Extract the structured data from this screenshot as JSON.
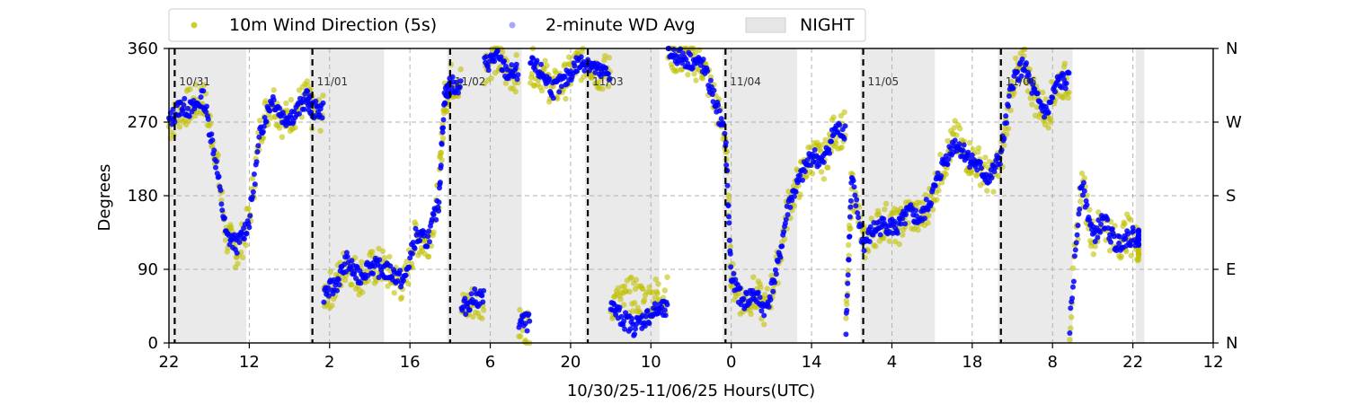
{
  "chart_data": {
    "type": "scatter",
    "title": "",
    "xlabel": "10/30/25-11/06/25  Hours(UTC)",
    "ylabel": "Degrees",
    "ylim": [
      0,
      360
    ],
    "yticks": [
      0,
      90,
      180,
      270,
      360
    ],
    "y2ticks": [
      "N",
      "E",
      "S",
      "W",
      "N"
    ],
    "x_start": "2025-10-30T22:00Z",
    "xlim_hours": [
      0,
      182
    ],
    "xtick_labels": [
      "22",
      "12",
      "2",
      "16",
      "6",
      "20",
      "10",
      "0",
      "14",
      "4",
      "18",
      "8",
      "22",
      "12"
    ],
    "grid": true,
    "legend_position": "top",
    "legend": [
      {
        "label": "10m Wind Direction (5s)",
        "color": "#bfbf00",
        "kind": "marker"
      },
      {
        "label": "2-minute WD Avg",
        "color": "#0000ff",
        "kind": "marker"
      },
      {
        "label": "NIGHT",
        "color": "#e6e6e6",
        "kind": "patch"
      }
    ],
    "day_boundaries": [
      {
        "hour": 1,
        "label": "10/31"
      },
      {
        "hour": 25,
        "label": "11/01"
      },
      {
        "hour": 49,
        "label": "11/02"
      },
      {
        "hour": 73,
        "label": "11/03"
      },
      {
        "hour": 97,
        "label": "11/04"
      },
      {
        "hour": 121,
        "label": "11/05"
      },
      {
        "hour": 145,
        "label": "11/06"
      }
    ],
    "night_periods": [
      [
        0,
        13.5
      ],
      [
        24.5,
        37.5
      ],
      [
        48.5,
        61.5
      ],
      [
        72.5,
        85.5
      ],
      [
        96.5,
        109.5
      ],
      [
        120.5,
        133.5
      ],
      [
        144.5,
        157.5
      ],
      [
        168.5,
        170
      ]
    ],
    "series": [
      {
        "name": "10m Wind Direction (5s)",
        "color": "#bfbf00",
        "points": [
          [
            0,
            265
          ],
          [
            2,
            285
          ],
          [
            4,
            290
          ],
          [
            6,
            300
          ],
          [
            8,
            240
          ],
          [
            10,
            130
          ],
          [
            12,
            110
          ],
          [
            14,
            150
          ],
          [
            16,
            265
          ],
          [
            18,
            300
          ],
          [
            20,
            270
          ],
          [
            22,
            285
          ],
          [
            24,
            300
          ],
          [
            25,
            280
          ],
          [
            27,
            60
          ],
          [
            29,
            70
          ],
          [
            31,
            100
          ],
          [
            33,
            80
          ],
          [
            35,
            90
          ],
          [
            37,
            95
          ],
          [
            39,
            80
          ],
          [
            41,
            70
          ],
          [
            43,
            130
          ],
          [
            45,
            120
          ],
          [
            47,
            180
          ],
          [
            48,
            295
          ],
          [
            49,
            320
          ],
          [
            51,
            40
          ],
          [
            53,
            50
          ],
          [
            55,
            340
          ],
          [
            57,
            350
          ],
          [
            59,
            330
          ],
          [
            61,
            20
          ],
          [
            63,
            340
          ],
          [
            65,
            330
          ],
          [
            67,
            310
          ],
          [
            69,
            320
          ],
          [
            71,
            340
          ],
          [
            73,
            345
          ],
          [
            75,
            330
          ],
          [
            77,
            50
          ],
          [
            79,
            50
          ],
          [
            81,
            60
          ],
          [
            83,
            50
          ],
          [
            85,
            60
          ],
          [
            87,
            355
          ],
          [
            89,
            350
          ],
          [
            91,
            345
          ],
          [
            93,
            340
          ],
          [
            95,
            300
          ],
          [
            97,
            250
          ],
          [
            98,
            80
          ],
          [
            100,
            50
          ],
          [
            102,
            60
          ],
          [
            104,
            40
          ],
          [
            106,
            90
          ],
          [
            108,
            170
          ],
          [
            110,
            200
          ],
          [
            112,
            230
          ],
          [
            114,
            220
          ],
          [
            116,
            260
          ],
          [
            118,
            20
          ],
          [
            119,
            200
          ],
          [
            121,
            120
          ],
          [
            123,
            140
          ],
          [
            125,
            150
          ],
          [
            127,
            140
          ],
          [
            129,
            160
          ],
          [
            131,
            150
          ],
          [
            133,
            180
          ],
          [
            135,
            220
          ],
          [
            137,
            250
          ],
          [
            139,
            230
          ],
          [
            141,
            220
          ],
          [
            143,
            200
          ],
          [
            145,
            220
          ],
          [
            147,
            320
          ],
          [
            149,
            340
          ],
          [
            151,
            300
          ],
          [
            153,
            280
          ],
          [
            155,
            320
          ],
          [
            157,
            20
          ],
          [
            159,
            200
          ],
          [
            161,
            130
          ],
          [
            163,
            150
          ],
          [
            165,
            120
          ],
          [
            167,
            135
          ],
          [
            169,
            120
          ]
        ]
      },
      {
        "name": "2-minute WD Avg",
        "color": "#0000ff",
        "points": [
          [
            0,
            270
          ],
          [
            2,
            290
          ],
          [
            4,
            285
          ],
          [
            6,
            300
          ],
          [
            8,
            230
          ],
          [
            10,
            130
          ],
          [
            12,
            120
          ],
          [
            14,
            150
          ],
          [
            16,
            260
          ],
          [
            18,
            300
          ],
          [
            20,
            275
          ],
          [
            22,
            280
          ],
          [
            24,
            300
          ],
          [
            25,
            285
          ],
          [
            27,
            60
          ],
          [
            29,
            70
          ],
          [
            31,
            100
          ],
          [
            33,
            80
          ],
          [
            35,
            95
          ],
          [
            37,
            90
          ],
          [
            39,
            85
          ],
          [
            41,
            75
          ],
          [
            43,
            130
          ],
          [
            45,
            125
          ],
          [
            47,
            170
          ],
          [
            48,
            300
          ],
          [
            49,
            315
          ],
          [
            51,
            40
          ],
          [
            53,
            55
          ],
          [
            55,
            340
          ],
          [
            57,
            350
          ],
          [
            59,
            330
          ],
          [
            61,
            25
          ],
          [
            63,
            340
          ],
          [
            65,
            330
          ],
          [
            67,
            310
          ],
          [
            69,
            320
          ],
          [
            71,
            340
          ],
          [
            73,
            345
          ],
          [
            75,
            330
          ],
          [
            77,
            45
          ],
          [
            79,
            30
          ],
          [
            81,
            20
          ],
          [
            83,
            30
          ],
          [
            85,
            40
          ],
          [
            87,
            355
          ],
          [
            89,
            350
          ],
          [
            91,
            345
          ],
          [
            93,
            340
          ],
          [
            95,
            300
          ],
          [
            97,
            250
          ],
          [
            98,
            80
          ],
          [
            100,
            50
          ],
          [
            102,
            60
          ],
          [
            104,
            40
          ],
          [
            106,
            90
          ],
          [
            108,
            170
          ],
          [
            110,
            200
          ],
          [
            112,
            230
          ],
          [
            114,
            220
          ],
          [
            116,
            260
          ],
          [
            118,
            20
          ],
          [
            119,
            200
          ],
          [
            121,
            120
          ],
          [
            123,
            140
          ],
          [
            125,
            145
          ],
          [
            127,
            140
          ],
          [
            129,
            160
          ],
          [
            131,
            150
          ],
          [
            133,
            180
          ],
          [
            135,
            220
          ],
          [
            137,
            245
          ],
          [
            139,
            230
          ],
          [
            141,
            215
          ],
          [
            143,
            200
          ],
          [
            145,
            230
          ],
          [
            147,
            320
          ],
          [
            149,
            340
          ],
          [
            151,
            300
          ],
          [
            153,
            280
          ],
          [
            155,
            320
          ],
          [
            157,
            20
          ],
          [
            159,
            200
          ],
          [
            161,
            130
          ],
          [
            163,
            150
          ],
          [
            165,
            120
          ],
          [
            167,
            130
          ],
          [
            169,
            130
          ]
        ]
      }
    ]
  }
}
